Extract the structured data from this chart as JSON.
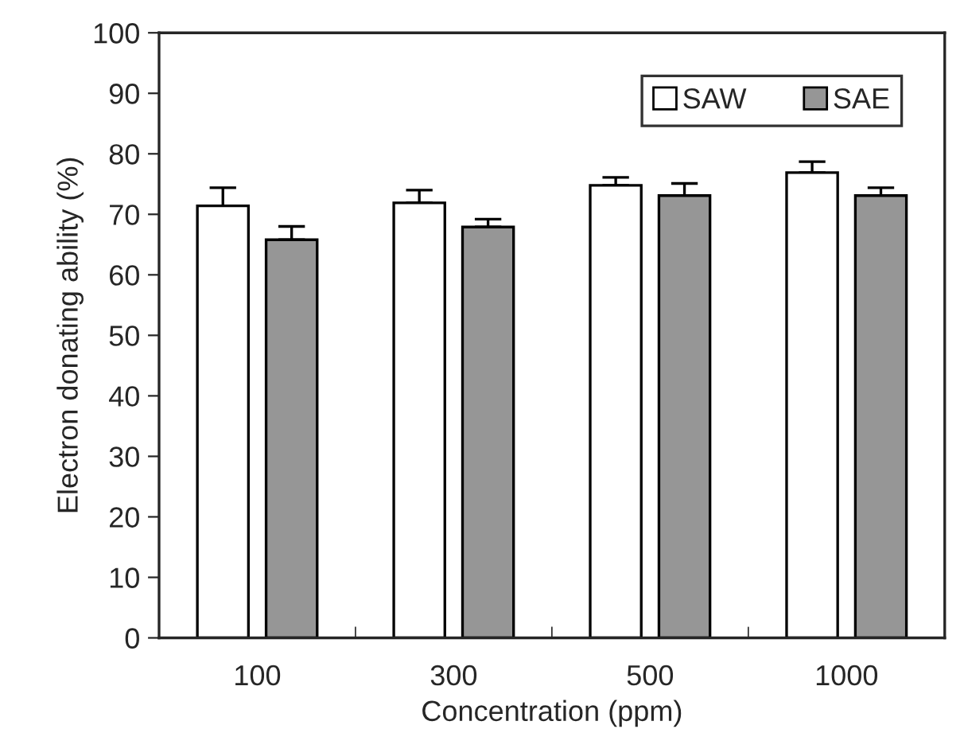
{
  "chart_data": {
    "type": "bar",
    "xlabel": "Concentration (ppm)",
    "ylabel": "Electron donating ability (%)",
    "categories": [
      "100",
      "300",
      "500",
      "1000"
    ],
    "series": [
      {
        "name": "SAW",
        "color": "#ffffff",
        "values": [
          71.4,
          71.9,
          74.8,
          76.9
        ],
        "errors": [
          [
            71.4,
            74.4
          ],
          [
            71.9,
            74.0
          ],
          [
            74.8,
            76.1
          ],
          [
            76.9,
            78.7
          ]
        ]
      },
      {
        "name": "SAE",
        "color": "#969696",
        "values": [
          65.8,
          67.9,
          73.1,
          73.1
        ],
        "errors": [
          [
            65.8,
            68.0
          ],
          [
            67.9,
            69.2
          ],
          [
            73.1,
            75.1
          ],
          [
            73.1,
            74.4
          ]
        ]
      }
    ],
    "ylim": [
      0,
      100
    ],
    "yticks": [
      0,
      10,
      20,
      30,
      40,
      50,
      60,
      70,
      80,
      90,
      100
    ],
    "grid": false,
    "legend": "top right"
  }
}
